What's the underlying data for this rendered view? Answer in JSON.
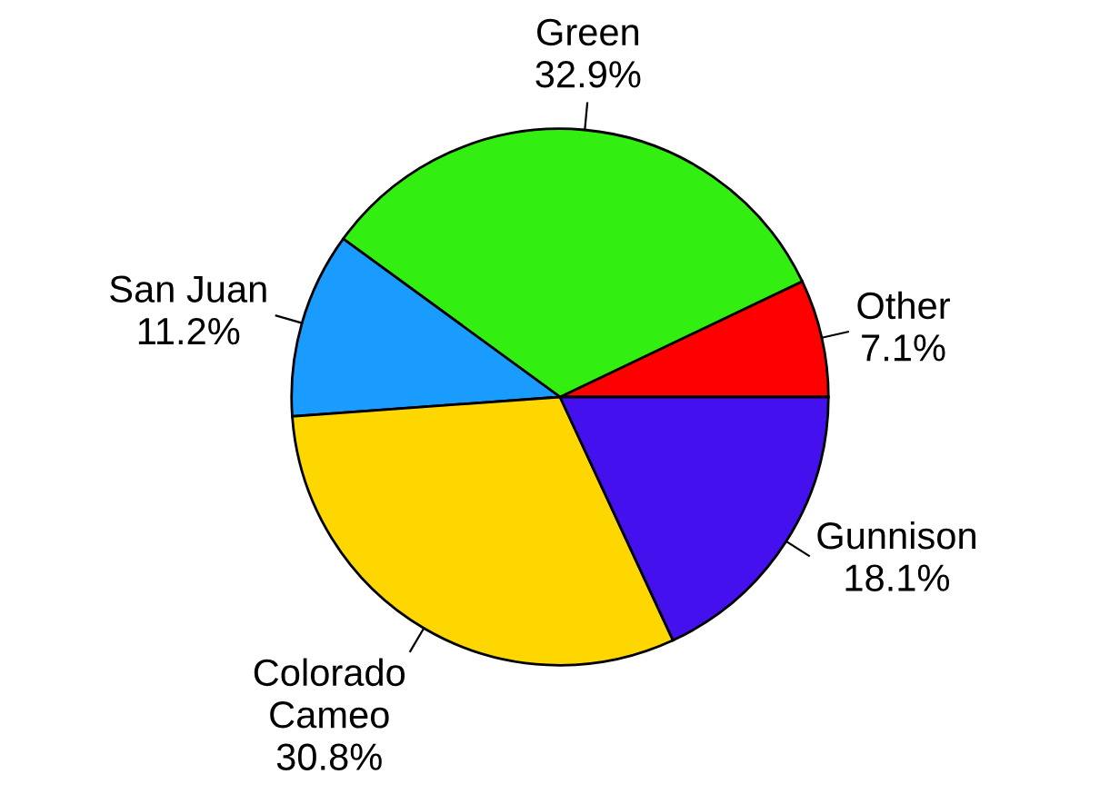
{
  "chart_data": {
    "type": "pie",
    "categories": [
      "Other",
      "Green",
      "San Juan",
      "Colorado\nCameo",
      "Gunnison"
    ],
    "values": [
      7.1,
      32.9,
      11.2,
      30.8,
      18.1
    ],
    "value_labels": [
      "7.1%",
      "32.9%",
      "11.2%",
      "30.8%",
      "18.1%"
    ],
    "colors": [
      "#ff0000",
      "#33ee11",
      "#1a9cff",
      "#ffd700",
      "#4411ee"
    ]
  }
}
